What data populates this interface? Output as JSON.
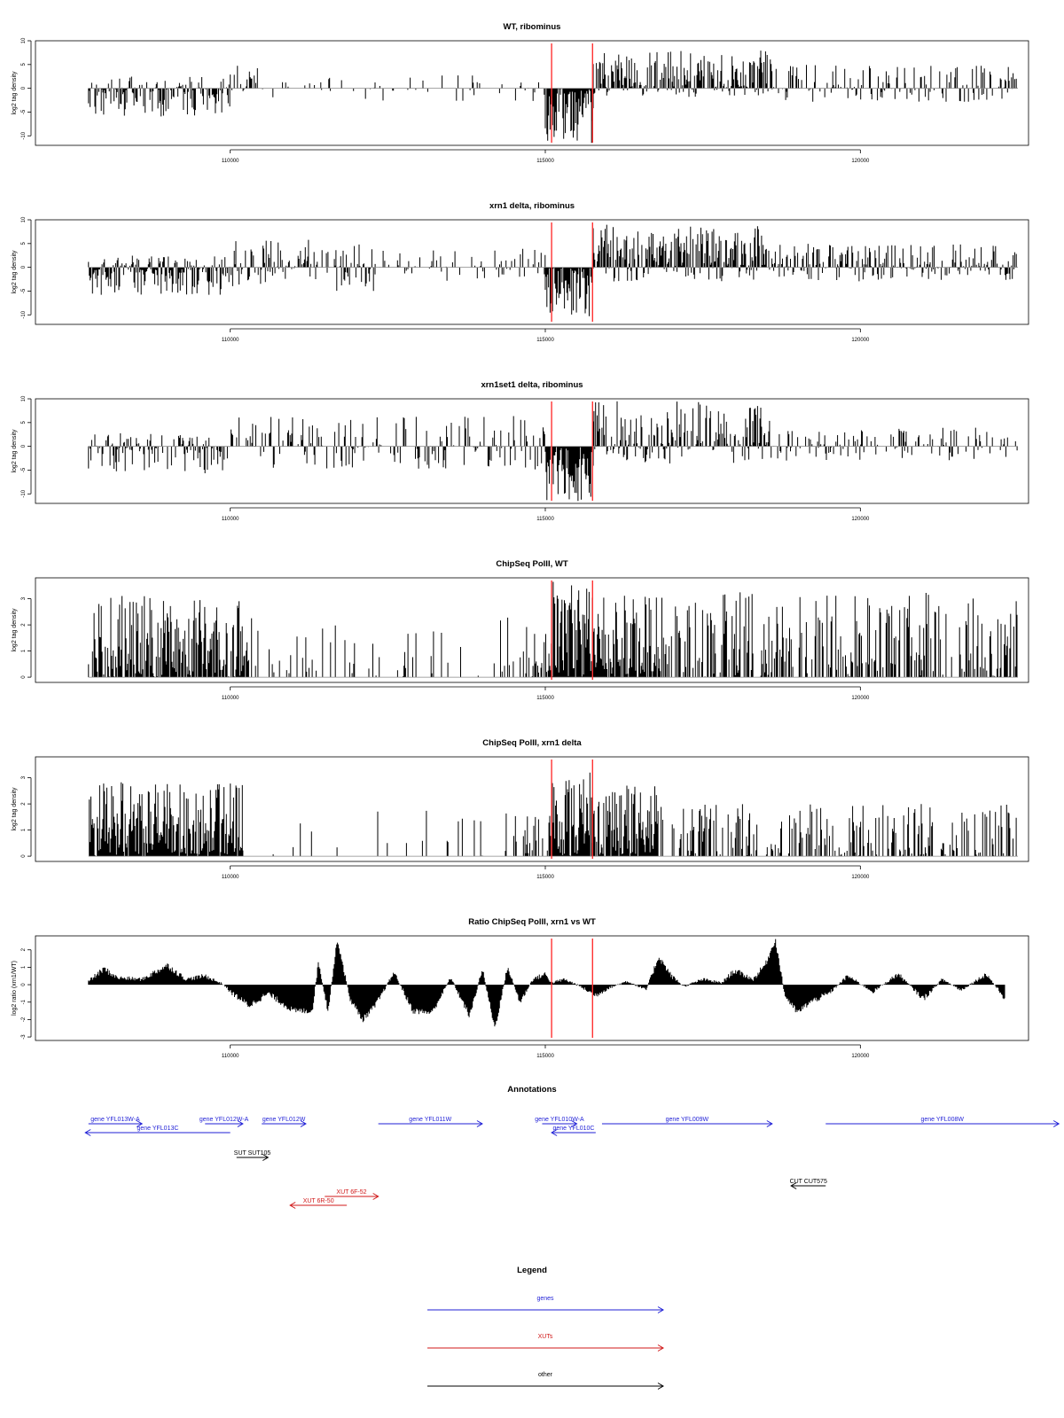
{
  "chart_data": [
    {
      "type": "bar",
      "title": "WT, ribominus",
      "ylabel": "log2 tag density",
      "xlim": [
        107500,
        122500
      ],
      "ylim": [
        -12,
        10
      ],
      "yticks": [
        -10,
        -5,
        0,
        5,
        10
      ],
      "xticks": [
        110000,
        115000,
        120000
      ],
      "markers": [
        115100,
        115750
      ],
      "profile": [
        {
          "from": 107750,
          "to": 110000,
          "min": -6,
          "max": 2.5,
          "density": 0.75
        },
        {
          "from": 110000,
          "to": 110450,
          "min": -1,
          "max": 5,
          "density": 0.65
        },
        {
          "from": 110450,
          "to": 115000,
          "min": -3,
          "max": 3,
          "density": 0.12
        },
        {
          "from": 115000,
          "to": 115760,
          "min": -11.5,
          "max": 0,
          "density": 1.0
        },
        {
          "from": 115760,
          "to": 118600,
          "min": -2,
          "max": 8,
          "density": 0.85
        },
        {
          "from": 118600,
          "to": 122500,
          "min": -3,
          "max": 5,
          "density": 0.45
        }
      ]
    },
    {
      "type": "bar",
      "title": "xrn1 delta, ribominus",
      "ylabel": "log2 tag density",
      "xlim": [
        107500,
        122500
      ],
      "ylim": [
        -12,
        10
      ],
      "yticks": [
        -10,
        -5,
        0,
        5,
        10
      ],
      "xticks": [
        110000,
        115000,
        120000
      ],
      "markers": [
        115100,
        115750
      ],
      "profile": [
        {
          "from": 107750,
          "to": 110000,
          "min": -6,
          "max": 2.5,
          "density": 0.95
        },
        {
          "from": 110000,
          "to": 111500,
          "min": -4,
          "max": 6,
          "density": 0.6
        },
        {
          "from": 111500,
          "to": 112300,
          "min": -5,
          "max": 5,
          "density": 0.7
        },
        {
          "from": 112300,
          "to": 115000,
          "min": -3,
          "max": 4,
          "density": 0.25
        },
        {
          "from": 115000,
          "to": 115760,
          "min": -11,
          "max": 0,
          "density": 1.0
        },
        {
          "from": 115760,
          "to": 118600,
          "min": -3,
          "max": 9,
          "density": 0.9
        },
        {
          "from": 118600,
          "to": 122500,
          "min": -3,
          "max": 5,
          "density": 0.7
        }
      ]
    },
    {
      "type": "bar",
      "title": "xrn1set1 delta, ribominus",
      "ylabel": "log2 tag density",
      "xlim": [
        107500,
        122500
      ],
      "ylim": [
        -12,
        10
      ],
      "yticks": [
        -10,
        -5,
        0,
        5,
        10
      ],
      "xticks": [
        110000,
        115000,
        120000
      ],
      "markers": [
        115100,
        115750
      ],
      "profile": [
        {
          "from": 107750,
          "to": 110000,
          "min": -6,
          "max": 3,
          "density": 0.6
        },
        {
          "from": 110000,
          "to": 115000,
          "min": -5,
          "max": 6.5,
          "density": 0.4
        },
        {
          "from": 115000,
          "to": 115760,
          "min": -11.5,
          "max": 0,
          "density": 1.0
        },
        {
          "from": 115760,
          "to": 118600,
          "min": -4,
          "max": 9.5,
          "density": 0.75
        },
        {
          "from": 118600,
          "to": 122500,
          "min": -3,
          "max": 4,
          "density": 0.4
        }
      ]
    },
    {
      "type": "bar",
      "title": "ChipSeq PolII, WT",
      "ylabel": "log2 tag density",
      "xlim": [
        107500,
        122500
      ],
      "ylim": [
        -0.2,
        3.8
      ],
      "yticks": [
        0,
        1,
        2,
        3
      ],
      "xticks": [
        110000,
        115000,
        120000
      ],
      "markers": [
        115100,
        115750
      ],
      "profile": [
        {
          "from": 107750,
          "to": 109000,
          "min": 0,
          "max": 3.2,
          "density": 0.85
        },
        {
          "from": 109000,
          "to": 110300,
          "min": 0,
          "max": 3.0,
          "density": 0.8
        },
        {
          "from": 110300,
          "to": 114500,
          "min": 0,
          "max": 2.3,
          "density": 0.15
        },
        {
          "from": 114500,
          "to": 115100,
          "min": 0,
          "max": 2.0,
          "density": 0.5
        },
        {
          "from": 115100,
          "to": 115750,
          "min": 0,
          "max": 3.7,
          "density": 1.0
        },
        {
          "from": 115750,
          "to": 116800,
          "min": 0,
          "max": 3.2,
          "density": 0.9
        },
        {
          "from": 116800,
          "to": 122500,
          "min": 0,
          "max": 3.3,
          "density": 0.45
        }
      ]
    },
    {
      "type": "bar",
      "title": "ChipSeq PolII, xrn1 delta",
      "ylabel": "log2 tag density",
      "xlim": [
        107500,
        122500
      ],
      "ylim": [
        -0.2,
        3.8
      ],
      "yticks": [
        0,
        1,
        2,
        3
      ],
      "xticks": [
        110000,
        115000,
        120000
      ],
      "markers": [
        115100,
        115750
      ],
      "profile": [
        {
          "from": 107750,
          "to": 108900,
          "min": 0,
          "max": 2.9,
          "density": 0.95
        },
        {
          "from": 108900,
          "to": 110200,
          "min": 0,
          "max": 2.8,
          "density": 0.95
        },
        {
          "from": 110200,
          "to": 114500,
          "min": 0,
          "max": 1.8,
          "density": 0.06
        },
        {
          "from": 114500,
          "to": 115100,
          "min": 0,
          "max": 1.6,
          "density": 0.5
        },
        {
          "from": 115100,
          "to": 115750,
          "min": 0,
          "max": 3.5,
          "density": 1.0
        },
        {
          "from": 115750,
          "to": 116800,
          "min": 0,
          "max": 2.7,
          "density": 0.95
        },
        {
          "from": 116800,
          "to": 122500,
          "min": 0,
          "max": 2.0,
          "density": 0.4
        }
      ]
    },
    {
      "type": "area",
      "title": "Ratio ChipSeq PolII, xrn1 vs WT",
      "ylabel": "log2 ratio (xrn1/WT)",
      "xlim": [
        107500,
        122500
      ],
      "ylim": [
        -3.2,
        2.8
      ],
      "yticks": [
        -3,
        -2,
        -1,
        0,
        1,
        2
      ],
      "xticks": [
        110000,
        115000,
        120000
      ],
      "markers": [
        115100,
        115750
      ],
      "x": [
        107750,
        108000,
        108200,
        108600,
        109000,
        109300,
        109600,
        109900,
        110000,
        110300,
        110600,
        111000,
        111300,
        111400,
        111550,
        111700,
        111900,
        112100,
        112300,
        112600,
        112900,
        113200,
        113500,
        113800,
        114000,
        114200,
        114400,
        114600,
        114800,
        115000,
        115100,
        115300,
        115500,
        115800,
        116000,
        116300,
        116600,
        116800,
        117000,
        117200,
        117500,
        117800,
        118000,
        118300,
        118500,
        118650,
        118800,
        119000,
        119200,
        119500,
        119800,
        120200,
        120600,
        121000,
        121300,
        121600,
        122000,
        122300
      ],
      "y": [
        0.2,
        0.9,
        0.4,
        0.3,
        1.1,
        0.3,
        0.5,
        0.0,
        -0.4,
        -1.2,
        -0.5,
        -1.5,
        -1.5,
        1.3,
        -1.5,
        2.6,
        -0.8,
        -2.0,
        -1.2,
        0.7,
        -1.5,
        -1.6,
        0.4,
        -1.8,
        0.9,
        -2.5,
        1.0,
        -1.0,
        0.3,
        0.6,
        0.1,
        0.3,
        0.0,
        -0.6,
        -0.2,
        0.2,
        -0.3,
        1.6,
        0.5,
        -0.1,
        0.3,
        0.1,
        0.8,
        0.3,
        1.2,
        2.6,
        -0.6,
        -1.6,
        -1.0,
        -0.5,
        0.5,
        -0.4,
        0.6,
        -0.8,
        0.3,
        -0.3,
        0.6,
        -0.8
      ]
    }
  ],
  "annotations": {
    "title": "Annotations",
    "xlim": [
      107500,
      122500
    ],
    "features": [
      {
        "label": "gene YFL013W-A",
        "start": 107750,
        "end": 108600,
        "strand": "+",
        "row": 0,
        "color": "#1f1fd6"
      },
      {
        "label": "gene YFL013C",
        "start": 107700,
        "end": 110000,
        "strand": "-",
        "row": 1,
        "color": "#1f1fd6"
      },
      {
        "label": "gene YFL012W-A",
        "start": 109600,
        "end": 110200,
        "strand": "+",
        "row": 0,
        "color": "#1f1fd6"
      },
      {
        "label": "gene YFL012W",
        "start": 110500,
        "end": 111200,
        "strand": "+",
        "row": 0,
        "color": "#1f1fd6"
      },
      {
        "label": "gene YFL011W",
        "start": 112350,
        "end": 114000,
        "strand": "+",
        "row": 0,
        "color": "#1f1fd6"
      },
      {
        "label": "gene YFL010W-A",
        "start": 114950,
        "end": 115500,
        "strand": "+",
        "row": 0,
        "color": "#1f1fd6"
      },
      {
        "label": "gene YFL010C",
        "start": 115100,
        "end": 115800,
        "strand": "-",
        "row": 1,
        "color": "#1f1fd6"
      },
      {
        "label": "gene YFL009W",
        "start": 115900,
        "end": 118600,
        "strand": "+",
        "row": 0,
        "color": "#1f1fd6"
      },
      {
        "label": "gene YFL008W",
        "start": 119450,
        "end": 123150,
        "strand": "+",
        "row": 0,
        "color": "#1f1fd6"
      },
      {
        "label": "SUT SUT105",
        "start": 110100,
        "end": 110600,
        "strand": "+",
        "row": 3,
        "color": "#000000"
      },
      {
        "label": "CUT CUT575",
        "start": 118900,
        "end": 119450,
        "strand": "-",
        "row": 5,
        "color": "#000000"
      },
      {
        "label": "XUT 6F-52",
        "start": 111500,
        "end": 112350,
        "strand": "+",
        "row": 6,
        "color": "#d01818"
      },
      {
        "label": "XUT 6R-50",
        "start": 110950,
        "end": 111850,
        "strand": "-",
        "row": 7,
        "color": "#d01818"
      }
    ]
  },
  "legend": {
    "title": "Legend",
    "items": [
      {
        "label": "genes",
        "color": "#1f1fd6"
      },
      {
        "label": "XUTs",
        "color": "#d01818"
      },
      {
        "label": "other",
        "color": "#000000"
      }
    ]
  }
}
